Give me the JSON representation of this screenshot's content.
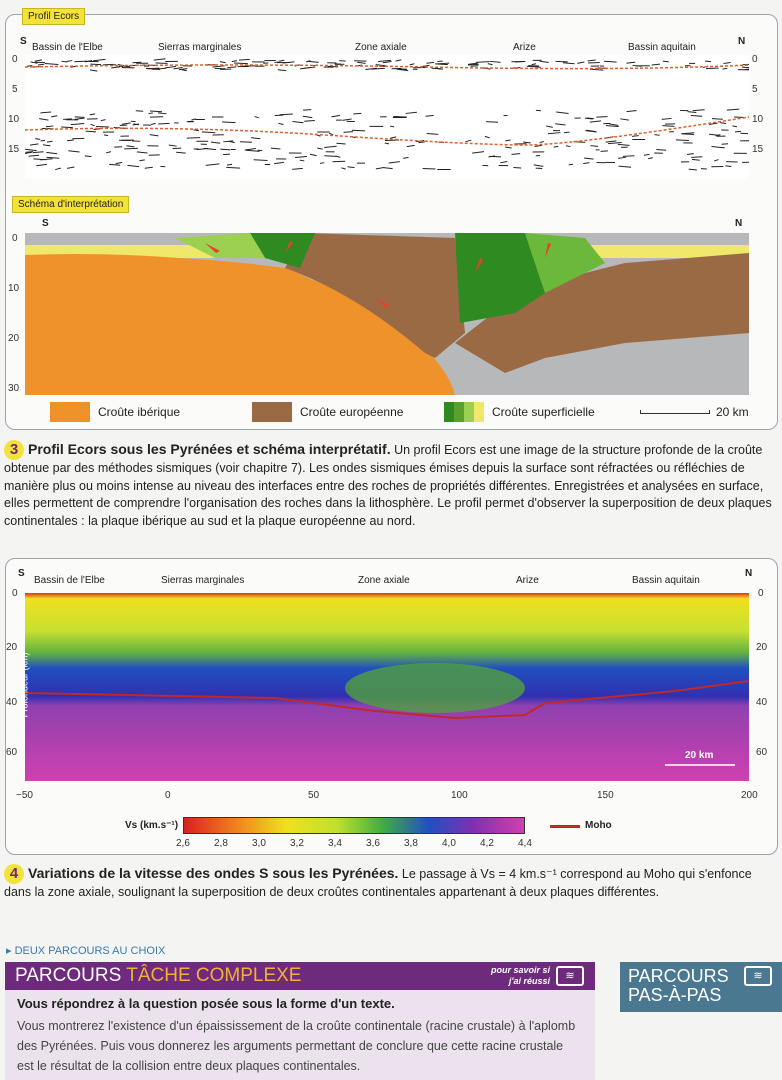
{
  "profile": {
    "tag": "Profil Ecors",
    "south": "S",
    "north": "N",
    "regions": [
      "Bassin de l'Elbe",
      "Sierras marginales",
      "Zone axiale",
      "Arize",
      "Bassin aquitain"
    ],
    "depth_ticks": [
      "0",
      "5",
      "10",
      "15"
    ]
  },
  "schema": {
    "tag": "Schéma d'interprétation",
    "south": "S",
    "north": "N",
    "depth_ticks": [
      "0",
      "10",
      "20",
      "30"
    ],
    "legend": [
      {
        "label": "Croûte ibérique",
        "color": "#f0922a"
      },
      {
        "label": "Croûte européenne",
        "color": "#9a6a45"
      },
      {
        "label": "Croûte superficielle",
        "color": "#5aa02a"
      }
    ],
    "scale": "20 km"
  },
  "caption3": {
    "num": "3",
    "title": "Profil Ecors sous les Pyrénées et schéma interprétatif.",
    "text": " Un profil Ecors est une image de la structure profonde de la croûte obtenue par des méthodes sismiques (voir chapitre 7). Les ondes sismiques émises depuis la surface sont réfractées ou réfléchies de manière plus ou moins intense au niveau des interfaces entre des roches de propriétés différentes. Enregistrées et analysées en surface, elles permettent de comprendre l'organisation des roches dans la lithosphère. Le profil permet d'observer la superposition de deux plaques continentales : la plaque ibérique au sud et la plaque européenne au nord."
  },
  "tomo": {
    "south": "S",
    "north": "N",
    "regions": [
      "Bassin de l'Elbe",
      "Sierras marginales",
      "Zone axiale",
      "Arize",
      "Bassin aquitain"
    ],
    "ylabel": "Profondeur (km)",
    "depth_ticks": [
      "0",
      "20",
      "40",
      "60"
    ],
    "x_ticks": [
      "−50",
      "0",
      "50",
      "100",
      "150",
      "200"
    ],
    "scale": "20 km",
    "colorbar_label": "Vs (km.s⁻¹)",
    "colorbar_ticks": [
      "2,6",
      "2,8",
      "3,0",
      "3,2",
      "3,4",
      "3,6",
      "3,8",
      "4,0",
      "4,2",
      "4,4"
    ],
    "moho_label": "Moho",
    "moho_color": "#c0282a"
  },
  "caption4": {
    "num": "4",
    "title": "Variations de la vitesse des ondes S sous les Pyrénées.",
    "text": " Le passage à Vs = 4 km.s⁻¹ correspond au Moho qui s'enfonce dans la zone axiale, soulignant la superposition de deux croûtes continentales appartenant à deux plaques différentes."
  },
  "parcours": {
    "intro": "DEUX PARCOURS AU CHOIX",
    "title_a": "PARCOURS ",
    "title_b": "TÂCHE COMPLEXE",
    "help": "pour savoir si j'ai réussi",
    "question": "Vous répondrez à la question posée sous la forme d'un texte.",
    "body": "Vous montrerez l'existence d'un épaississement de la croûte continentale (racine crustale) à l'aplomb des Pyrénées. Puis vous donnerez les arguments permettant de conclure que cette racine crustale est le résultat de la collision entre deux plaques continentales.",
    "alt_a": "PARCOURS",
    "alt_b": "PAS-À-PAS"
  }
}
